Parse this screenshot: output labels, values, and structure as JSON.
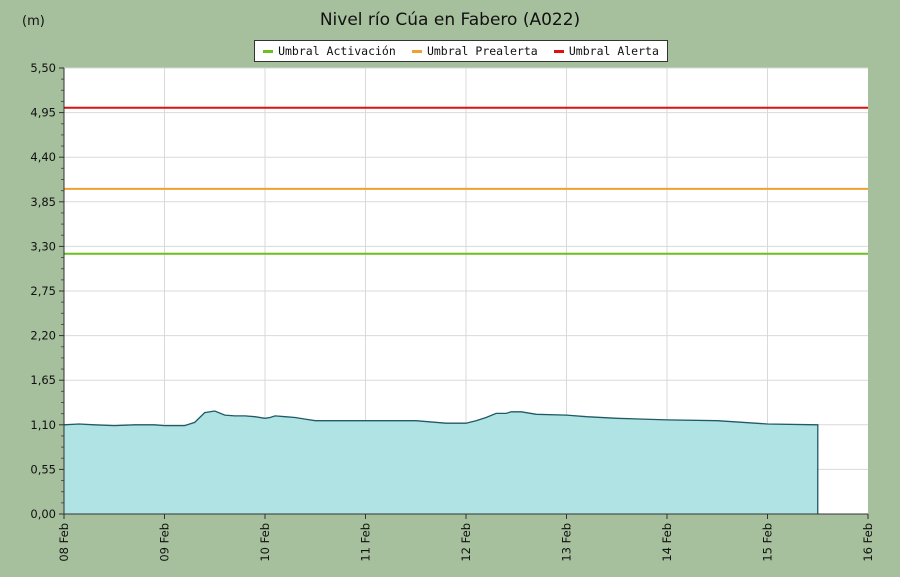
{
  "unit_label": "(m)",
  "chart_data": {
    "type": "area",
    "title": "Nivel río Cúa en Fabero  (A022)",
    "ylim": [
      0,
      5.5
    ],
    "yticks": [
      "0,00",
      "0,55",
      "1,10",
      "1,65",
      "2,20",
      "2,75",
      "3,30",
      "3,85",
      "4,40",
      "4,95",
      "5,50"
    ],
    "xlim": [
      0,
      8
    ],
    "xticks": [
      "08 Feb",
      "09 Feb",
      "10 Feb",
      "11 Feb",
      "12 Feb",
      "13 Feb",
      "14 Feb",
      "15 Feb",
      "16 Feb"
    ],
    "grid": true,
    "legend_position": "top",
    "thresholds": [
      {
        "name": "Umbral Activación",
        "value": 3.21,
        "color": "#6cbf1f"
      },
      {
        "name": "Umbral Prealerta",
        "value": 4.01,
        "color": "#f0a030"
      },
      {
        "name": "Umbral Alerta",
        "value": 5.01,
        "color": "#dd1111"
      }
    ],
    "series": [
      {
        "fill_color": "#b0e3e4",
        "line_color": "#1f5a66",
        "x": [
          0.0,
          0.15,
          0.3,
          0.5,
          0.7,
          0.9,
          1.0,
          1.2,
          1.3,
          1.4,
          1.5,
          1.6,
          1.7,
          1.8,
          1.9,
          2.0,
          2.05,
          2.1,
          2.2,
          2.3,
          2.4,
          2.5,
          3.0,
          3.5,
          3.8,
          4.0,
          4.1,
          4.2,
          4.3,
          4.4,
          4.45,
          4.55,
          4.7,
          5.0,
          5.2,
          5.5,
          6.0,
          6.5,
          7.0,
          7.5
        ],
        "y": [
          1.1,
          1.11,
          1.1,
          1.09,
          1.1,
          1.1,
          1.09,
          1.09,
          1.13,
          1.25,
          1.27,
          1.22,
          1.21,
          1.21,
          1.2,
          1.18,
          1.19,
          1.21,
          1.2,
          1.19,
          1.17,
          1.15,
          1.15,
          1.15,
          1.12,
          1.12,
          1.15,
          1.19,
          1.24,
          1.24,
          1.26,
          1.26,
          1.23,
          1.22,
          1.2,
          1.18,
          1.16,
          1.15,
          1.11,
          1.1
        ]
      }
    ]
  }
}
